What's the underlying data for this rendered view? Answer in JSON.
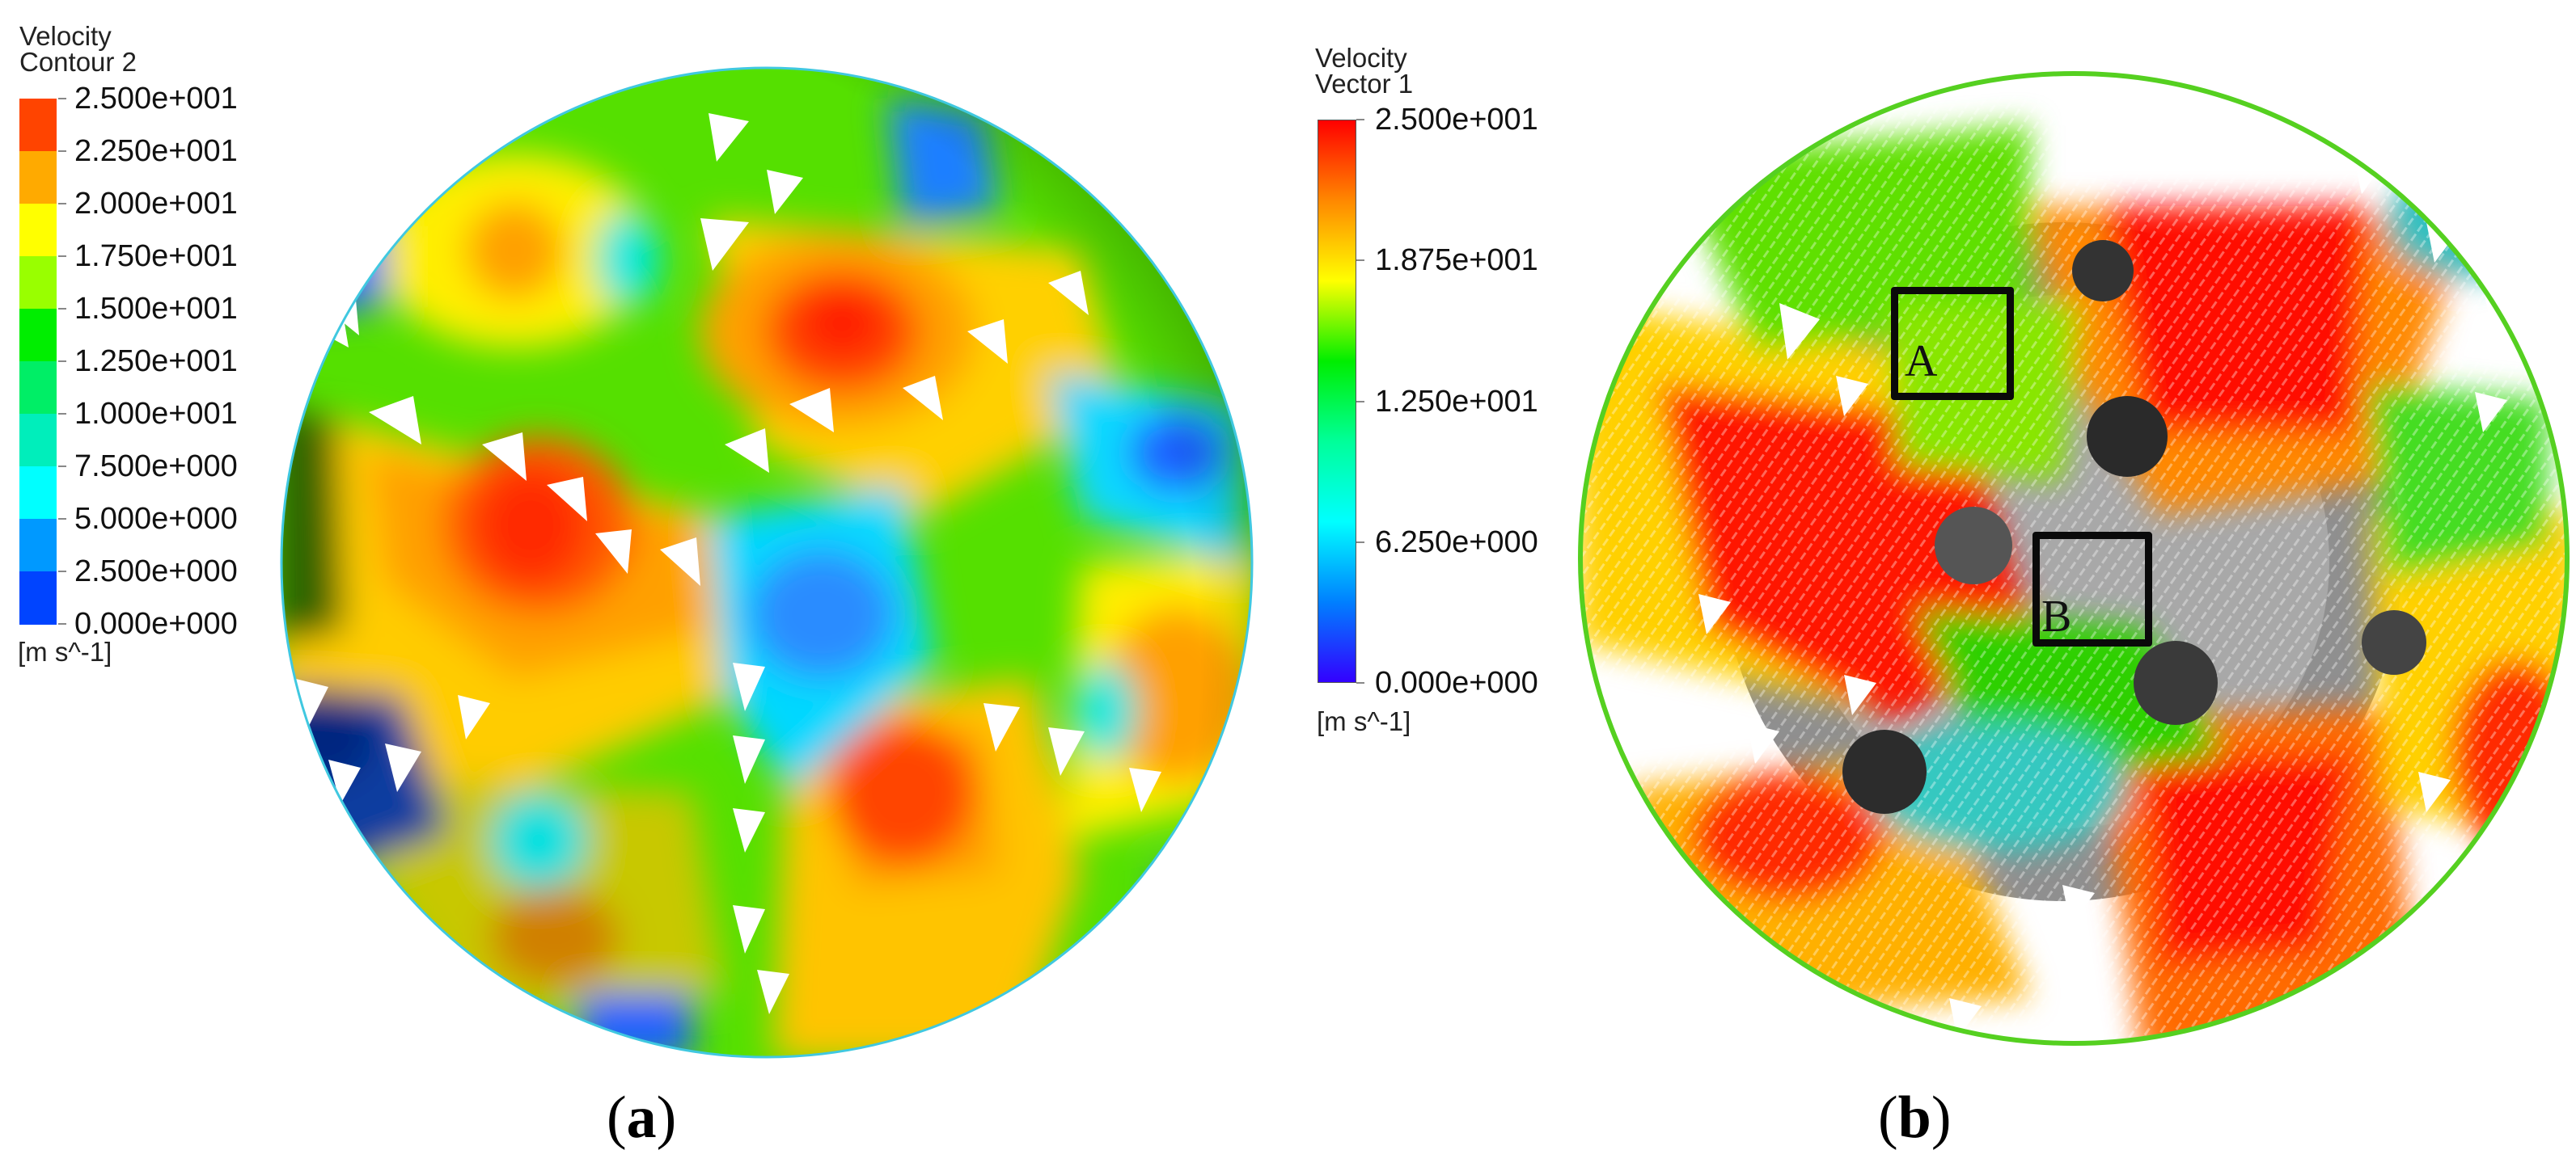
{
  "panels": [
    {
      "id": "a",
      "caption_open": "(",
      "caption_letter": "a",
      "caption_close": ")",
      "legend": {
        "title": "Velocity",
        "subtitle": "Contour 2",
        "unit": "[m s^-1]",
        "type": "discrete",
        "ticks": [
          "2.500e+001",
          "2.250e+001",
          "2.000e+001",
          "1.750e+001",
          "1.500e+001",
          "1.250e+001",
          "1.000e+001",
          "7.500e+000",
          "5.000e+000",
          "2.500e+000",
          "0.000e+000"
        ],
        "band_colors": [
          "#ff4400",
          "#ffaa00",
          "#ffff00",
          "#99ff00",
          "#00ee00",
          "#00ee66",
          "#00eebb",
          "#00ffff",
          "#0099ff",
          "#0044ff"
        ]
      }
    },
    {
      "id": "b",
      "caption_open": "(",
      "caption_letter": "b",
      "caption_close": ")",
      "legend": {
        "title": "Velocity",
        "subtitle": "Vector 1",
        "unit": "[m s^-1]",
        "type": "continuous",
        "ticks": [
          "2.500e+001",
          "1.875e+001",
          "1.250e+001",
          "6.250e+000",
          "0.000e+000"
        ],
        "gradient_colors": [
          "#ff0000",
          "#ff8800",
          "#ffff00",
          "#00ee00",
          "#00ff99",
          "#00ffff",
          "#0080ff",
          "#3300ff"
        ]
      },
      "regions": [
        {
          "label": "A"
        },
        {
          "label": "B"
        }
      ]
    }
  ],
  "chart_data": [
    {
      "type": "heatmap",
      "title": "Velocity Contour 2",
      "quantity": "Velocity",
      "unit": "m s^-1",
      "colorbar": {
        "min": 0.0,
        "max": 25.0,
        "levels": [
          0.0,
          2.5,
          5.0,
          7.5,
          10.0,
          12.5,
          15.0,
          17.5,
          20.0,
          22.5,
          25.0
        ],
        "style": "discrete"
      },
      "description": "Circular cross-section velocity contour field with white triangular/lobed openings; high-velocity (20-25 m/s) red/orange zones, low-velocity (0-7.5 m/s) blue/cyan zones near the openings.",
      "label": "(a)"
    },
    {
      "type": "heatmap",
      "title": "Velocity Vector 1",
      "quantity": "Velocity",
      "unit": "m s^-1",
      "colorbar": {
        "min": 0.0,
        "max": 25.0,
        "ticks": [
          0.0,
          6.25,
          12.5,
          18.75,
          25.0
        ],
        "style": "continuous"
      },
      "description": "Circular cross-section velocity vector field over grey geometry; vectors radiating from several dark hubs, red (~25 m/s) jets, regions A and B boxed.",
      "annotations": [
        "A",
        "B"
      ],
      "label": "(b)"
    }
  ]
}
